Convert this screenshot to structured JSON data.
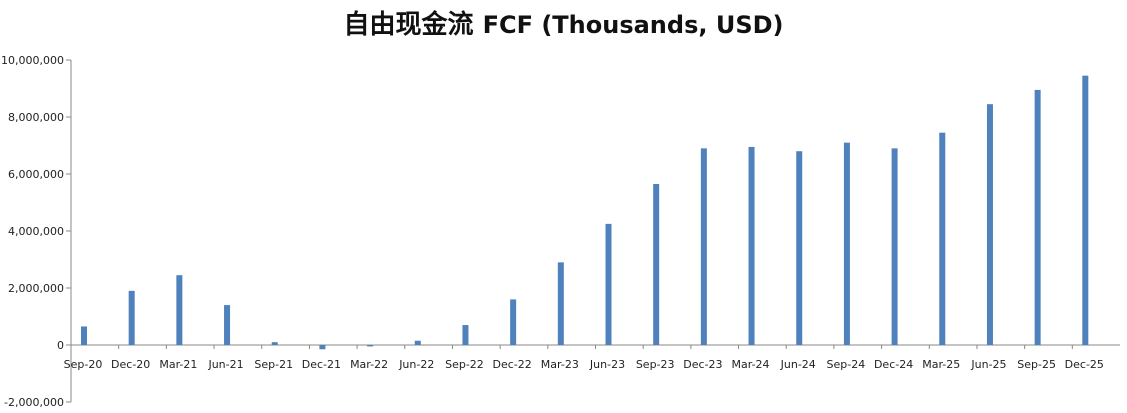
{
  "title": "自由现金流 FCF (Thousands, USD)",
  "title_parts": {
    "cn": "自由现金流",
    "en": "FCF (Thousands, USD)"
  },
  "colors": {
    "bar": "#4F81BD",
    "axis": "#888888"
  },
  "chart_data": {
    "type": "bar",
    "title": "自由现金流 FCF (Thousands, USD)",
    "xlabel": "",
    "ylabel": "",
    "ylim": [
      -2000000,
      10000000
    ],
    "grid": false,
    "legend": "none",
    "y_ticks": [
      "10,000,000",
      "8,000,000",
      "6,000,000",
      "4,000,000",
      "2,000,000",
      "0",
      "-2,000,000"
    ],
    "y_tick_values": [
      10000000,
      8000000,
      6000000,
      4000000,
      2000000,
      0,
      -2000000
    ],
    "categories": [
      "Sep-20",
      "Dec-20",
      "Mar-21",
      "Jun-21",
      "Sep-21",
      "Dec-21",
      "Mar-22",
      "Jun-22",
      "Sep-22",
      "Dec-22",
      "Mar-23",
      "Jun-23",
      "Sep-23",
      "Dec-23",
      "Mar-24",
      "Jun-24",
      "Sep-24",
      "Dec-24",
      "Mar-25",
      "Jun-25",
      "Sep-25",
      "Dec-25"
    ],
    "values": [
      650000,
      1900000,
      2450000,
      1400000,
      100000,
      -150000,
      -50000,
      150000,
      700000,
      1600000,
      2900000,
      4250000,
      5650000,
      6900000,
      6950000,
      6800000,
      7100000,
      6900000,
      7450000,
      8450000,
      8950000,
      9450000
    ]
  }
}
